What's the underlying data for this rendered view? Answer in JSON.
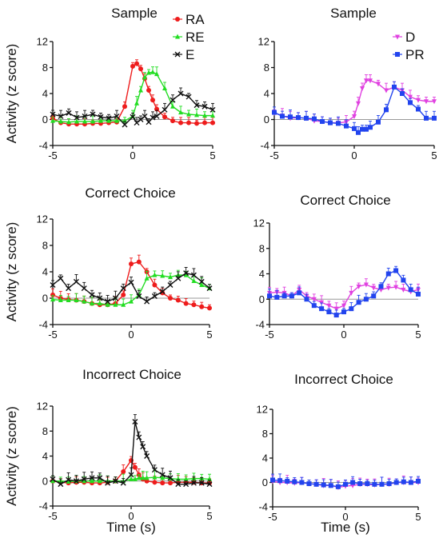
{
  "figure": {
    "y_axis_label": "Activity (z score)",
    "x_axis_label": "Time (s)"
  },
  "chart_data": [
    {
      "type": "line",
      "title": "Sample",
      "xlim": [
        -5,
        5
      ],
      "ylim": [
        -4,
        12
      ],
      "xticks": [
        -5,
        0,
        5
      ],
      "yticks": [
        -4,
        0,
        4,
        8,
        12
      ],
      "ylabel": "Activity (z score)",
      "xlabel": "",
      "legend": "top-right",
      "grid": false,
      "x": [
        -5,
        -4.5,
        -4,
        -3.5,
        -3,
        -2.5,
        -2,
        -1.5,
        -1,
        -0.5,
        0,
        0.25,
        0.5,
        0.75,
        1,
        1.25,
        1.5,
        2,
        2.5,
        3,
        3.5,
        4,
        4.5,
        5
      ],
      "series": [
        {
          "name": "RA",
          "color": "#ee1c1c",
          "marker": "circle",
          "values": [
            0.2,
            -0.5,
            -0.7,
            -0.7,
            -0.7,
            -0.6,
            -0.6,
            -0.5,
            -0.4,
            2,
            8.2,
            8.6,
            7.8,
            6.3,
            4.5,
            3,
            1.6,
            0.4,
            -0.2,
            -0.5,
            -0.5,
            -0.6,
            -0.5,
            -0.5
          ]
        },
        {
          "name": "RE",
          "color": "#22dd22",
          "marker": "triangle",
          "values": [
            -0.2,
            -0.3,
            -0.4,
            -0.3,
            -0.3,
            -0.3,
            -0.2,
            -0.2,
            -0.2,
            -0.2,
            0.5,
            2.5,
            4.5,
            6.5,
            7.2,
            7.3,
            7,
            4.8,
            2,
            1.1,
            0.8,
            0.7,
            0.6,
            0.6
          ]
        },
        {
          "name": "E",
          "color": "#111111",
          "marker": "x",
          "values": [
            0.8,
            0.5,
            1,
            0.3,
            0.5,
            0.8,
            0.4,
            0.2,
            0.5,
            -0.8,
            0.4,
            -0.5,
            0,
            0.5,
            -0.4,
            0.3,
            0.5,
            1.5,
            3,
            4,
            3.5,
            2.2,
            2,
            1.5
          ]
        }
      ]
    },
    {
      "type": "line",
      "title": "Sample",
      "xlim": [
        -5,
        5
      ],
      "ylim": [
        -4,
        12
      ],
      "xticks": [
        -5,
        0,
        5
      ],
      "yticks": [
        -4,
        0,
        4,
        8,
        12
      ],
      "ylabel": "",
      "xlabel": "",
      "legend": "top-right",
      "grid": false,
      "x": [
        -5,
        -4.5,
        -4,
        -3.5,
        -3,
        -2.5,
        -2,
        -1.5,
        -1,
        -0.5,
        0,
        0.25,
        0.5,
        0.75,
        1,
        1.5,
        2,
        2.5,
        3,
        3.5,
        4,
        4.5,
        5
      ],
      "series": [
        {
          "name": "D",
          "color": "#e040e0",
          "marker": "triangle-down",
          "values": [
            1,
            0.6,
            0.2,
            0.3,
            0.2,
            -0.2,
            -0.3,
            -0.5,
            -0.5,
            -0.4,
            0.5,
            2.5,
            4.8,
            6,
            6,
            5.5,
            4.5,
            5,
            4.5,
            3.5,
            3,
            2.8,
            2.8
          ]
        },
        {
          "name": "PR",
          "color": "#2244ee",
          "marker": "square",
          "values": [
            1.1,
            0.5,
            0.4,
            0.3,
            0.2,
            0.1,
            -0.3,
            -0.5,
            -0.6,
            -1,
            -1.4,
            -2,
            -1.5,
            -1.5,
            -1.2,
            -0.4,
            1.5,
            5,
            4,
            2.6,
            1.6,
            0.2,
            0.2
          ]
        }
      ]
    },
    {
      "type": "line",
      "title": "Correct Choice",
      "xlim": [
        -5,
        5
      ],
      "ylim": [
        -4,
        12
      ],
      "xticks": [
        -5,
        0,
        5
      ],
      "yticks": [
        -4,
        0,
        4,
        8,
        12
      ],
      "ylabel": "Activity (z score)",
      "xlabel": "",
      "legend": "none",
      "grid": false,
      "x": [
        -5,
        -4.5,
        -4,
        -3.5,
        -3,
        -2.5,
        -2,
        -1.5,
        -1,
        -0.5,
        0,
        0.5,
        1,
        1.5,
        2,
        2.5,
        3,
        3.5,
        4,
        4.5,
        5
      ],
      "series": [
        {
          "name": "RA",
          "color": "#ee1c1c",
          "marker": "circle",
          "values": [
            0.5,
            0,
            -0.2,
            -0.3,
            -0.5,
            -0.8,
            -1,
            -1,
            -0.8,
            0.5,
            5.2,
            5.5,
            4,
            2,
            0.8,
            0,
            -0.3,
            -0.8,
            -1,
            -1.3,
            -1.5
          ]
        },
        {
          "name": "RE",
          "color": "#22dd22",
          "marker": "triangle",
          "values": [
            -0.2,
            -0.3,
            -0.3,
            -0.3,
            -0.5,
            -0.8,
            -0.8,
            -1,
            -1,
            -1,
            -0.5,
            0.5,
            3,
            3.5,
            3.4,
            3.2,
            3.5,
            3.5,
            2.6,
            2,
            1.5
          ]
        },
        {
          "name": "E",
          "color": "#111111",
          "marker": "x",
          "values": [
            2,
            3,
            1.5,
            2.5,
            1.5,
            0.5,
            0,
            -0.5,
            0,
            1.5,
            2.4,
            0.3,
            -0.5,
            0.3,
            1,
            2,
            3,
            3.8,
            3.5,
            2.5,
            1.5
          ]
        }
      ]
    },
    {
      "type": "line",
      "title": "Correct Choice",
      "xlim": [
        -5,
        5
      ],
      "ylim": [
        -4,
        12
      ],
      "xticks": [
        -5,
        0,
        5
      ],
      "yticks": [
        -4,
        0,
        4,
        8,
        12
      ],
      "ylabel": "",
      "xlabel": "",
      "legend": "none",
      "grid": false,
      "x": [
        -5,
        -4.5,
        -4,
        -3.5,
        -3,
        -2.5,
        -2,
        -1.5,
        -1,
        -0.5,
        0,
        0.5,
        1,
        1.5,
        2,
        2.5,
        3,
        3.5,
        4,
        4.5,
        5
      ],
      "series": [
        {
          "name": "D",
          "color": "#e040e0",
          "marker": "triangle-down",
          "values": [
            1,
            1.1,
            1,
            0.5,
            1.5,
            0.5,
            0,
            -0.5,
            -1,
            -1.5,
            -1,
            1,
            2,
            2.3,
            1.8,
            1.5,
            1.8,
            1.9,
            1.5,
            1.2,
            1.5
          ]
        },
        {
          "name": "PR",
          "color": "#2244ee",
          "marker": "square",
          "values": [
            0.5,
            0.3,
            0.5,
            0.5,
            1,
            0,
            -1,
            -1.5,
            -2,
            -2.5,
            -2,
            -1.5,
            -0.5,
            0,
            0.5,
            2,
            4,
            4.5,
            3,
            1.5,
            0.8
          ]
        }
      ]
    },
    {
      "type": "line",
      "title": "Incorrect Choice",
      "xlim": [
        -5,
        5
      ],
      "ylim": [
        -4,
        12
      ],
      "xticks": [
        -5,
        0,
        5
      ],
      "yticks": [
        -4,
        0,
        4,
        8,
        12
      ],
      "ylabel": "Activity (z score)",
      "xlabel": "Time (s)",
      "legend": "none",
      "grid": false,
      "x": [
        -5,
        -4.5,
        -4,
        -3.5,
        -3,
        -2.5,
        -2,
        -1.5,
        -1,
        -0.5,
        0,
        0.25,
        0.5,
        0.75,
        1,
        1.5,
        2,
        2.5,
        3,
        3.5,
        4,
        4.5,
        5
      ],
      "series": [
        {
          "name": "RA",
          "color": "#ee1c1c",
          "marker": "circle",
          "values": [
            0,
            -0.2,
            -0.3,
            -0.2,
            -0.2,
            -0.3,
            -0.3,
            -0.2,
            0,
            1.5,
            3.3,
            2.2,
            1,
            0.3,
            0,
            -0.2,
            -0.3,
            -0.3,
            -0.2,
            -0.2,
            -0.2,
            -0.3,
            -0.3
          ]
        },
        {
          "name": "RE",
          "color": "#22dd22",
          "marker": "triangle",
          "values": [
            0,
            0,
            -0.1,
            0,
            0,
            0,
            0,
            0,
            0,
            0,
            0.3,
            0.3,
            0.5,
            0.5,
            0.5,
            0.6,
            0.5,
            0.4,
            0.3,
            0.3,
            0.4,
            0.4,
            0.3
          ]
        },
        {
          "name": "E",
          "color": "#111111",
          "marker": "x",
          "values": [
            0.3,
            -0.5,
            0.2,
            0,
            0.3,
            0.5,
            0.5,
            -0.3,
            0,
            -0.3,
            1,
            9.5,
            7,
            5.5,
            4,
            1.8,
            1,
            0.5,
            -0.5,
            -0.5,
            -0.3,
            -0.3,
            -0.5
          ]
        }
      ]
    },
    {
      "type": "line",
      "title": "Incorrect Choice",
      "xlim": [
        -5,
        5
      ],
      "ylim": [
        -4,
        12
      ],
      "xticks": [
        -5,
        0,
        5
      ],
      "yticks": [
        -4,
        0,
        4,
        8,
        12
      ],
      "ylabel": "",
      "xlabel": "Time (s)",
      "legend": "none",
      "grid": false,
      "x": [
        -5,
        -4.5,
        -4,
        -3.5,
        -3,
        -2.5,
        -2,
        -1.5,
        -1,
        -0.5,
        0,
        0.5,
        1,
        1.5,
        2,
        2.5,
        3,
        3.5,
        4,
        4.5,
        5
      ],
      "series": [
        {
          "name": "D",
          "color": "#e040e0",
          "marker": "triangle-down",
          "values": [
            0.2,
            0,
            0,
            -0.1,
            0,
            -0.2,
            -0.3,
            -0.5,
            -0.5,
            -0.8,
            -0.6,
            -0.5,
            -0.3,
            -0.3,
            -0.4,
            -0.3,
            -0.3,
            0,
            0,
            0,
            0
          ]
        },
        {
          "name": "PR",
          "color": "#2244ee",
          "marker": "square",
          "values": [
            0.4,
            0.3,
            0.2,
            0.1,
            0,
            -0.2,
            -0.3,
            -0.4,
            -0.5,
            -0.7,
            -0.3,
            0,
            -0.2,
            -0.2,
            -0.3,
            -0.3,
            -0.2,
            0,
            0.1,
            0,
            0.2
          ]
        }
      ]
    }
  ]
}
